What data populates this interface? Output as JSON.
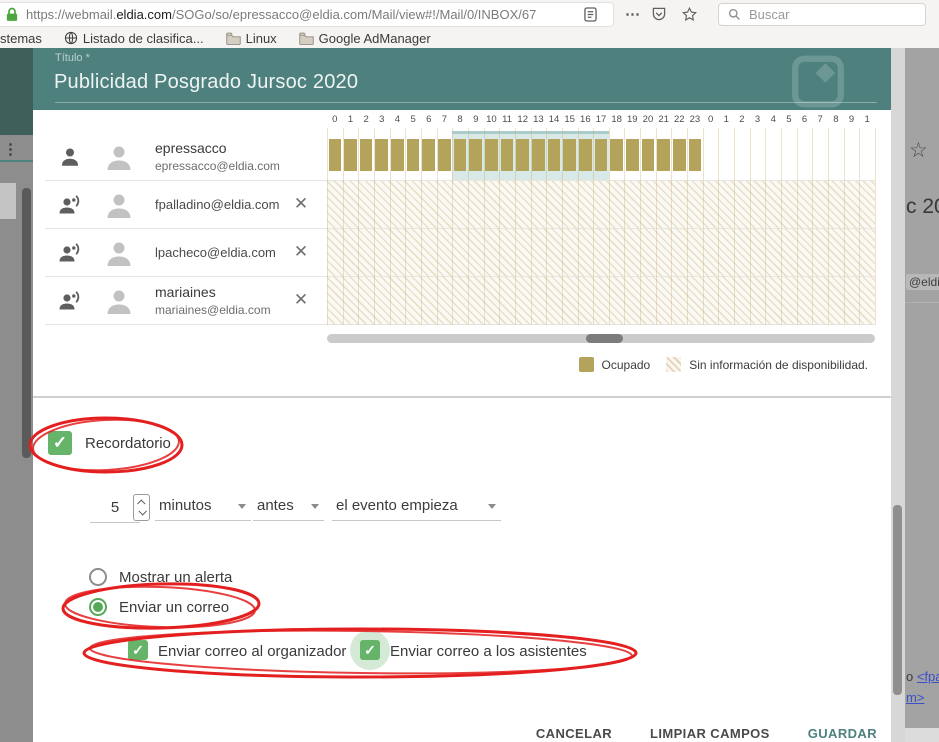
{
  "browser": {
    "url": {
      "prefix": "https://webmail.",
      "domain": "eldia.com",
      "path": "/SOGo/so/epressacco@eldia.com/Mail/view#!/Mail/0/INBOX/67"
    },
    "search_placeholder": "Buscar",
    "bookmarks": [
      {
        "label": "stemas",
        "icon": "none"
      },
      {
        "label": "Listado de clasifica...",
        "icon": "globe"
      },
      {
        "label": "Linux",
        "icon": "folder"
      },
      {
        "label": "Google AdManager",
        "icon": "folder"
      }
    ]
  },
  "dialog": {
    "header": {
      "field_label": "Título *",
      "title": "Publicidad Posgrado Jursoc 2020"
    },
    "scheduler": {
      "hour_labels": [
        "0",
        "1",
        "2",
        "3",
        "4",
        "5",
        "6",
        "7",
        "8",
        "9",
        "10",
        "11",
        "12",
        "13",
        "14",
        "15",
        "16",
        "17",
        "18",
        "19",
        "20",
        "21",
        "22",
        "23",
        "0",
        "1",
        "2",
        "3",
        "4",
        "5",
        "6",
        "7",
        "8",
        "9",
        "1"
      ],
      "highlight_start_hour": 8,
      "highlight_end_hour": 18,
      "attendees": [
        {
          "name": "epressacco",
          "email": "epressacco@eldia.com",
          "role": "organizer",
          "removable": false,
          "availability": "busy",
          "busy_range_hours": [
            0,
            24
          ]
        },
        {
          "name": "",
          "email": "fpalladino@eldia.com",
          "role": "attendee",
          "removable": true,
          "availability": "unknown"
        },
        {
          "name": "",
          "email": "lpacheco@eldia.com",
          "role": "attendee",
          "removable": true,
          "availability": "unknown"
        },
        {
          "name": "mariaines",
          "email": "mariaines@eldia.com",
          "role": "attendee",
          "removable": true,
          "availability": "unknown"
        }
      ],
      "legend": [
        {
          "type": "busy",
          "label": "Ocupado"
        },
        {
          "type": "no-info",
          "label": "Sin información de disponibilidad."
        }
      ]
    },
    "reminder": {
      "checkbox_label": "Recordatorio",
      "checked": true,
      "value": "5",
      "unit": "minutos",
      "timing": "antes",
      "reference": "el evento empieza",
      "radios": [
        {
          "label": "Mostrar un alerta",
          "selected": false
        },
        {
          "label": "Enviar un correo",
          "selected": true
        }
      ],
      "checkboxes": [
        {
          "label": "Enviar correo al organizador",
          "checked": true
        },
        {
          "label": "Enviar correo a los asistentes",
          "checked": true
        }
      ]
    },
    "actions": {
      "cancel": "CANCELAR",
      "clear": "LIMPIAR CAMPOS",
      "save": "GUARDAR"
    }
  },
  "background_page": {
    "partial_title": "c 20",
    "partial_email": "@eldia",
    "partial_text_before_link": "o ",
    "partial_link1": "<fpa",
    "partial_link2": "m>"
  },
  "icons": {
    "close": "✕",
    "checkmark": "✓",
    "overflow_menu": "⋯",
    "kebab_menu": "⋮",
    "star_outline": "☆"
  },
  "colors": {
    "accent_teal": "#4e817e",
    "busy_olive": "#b3a35b",
    "highlight_teal": "#8cbbb7",
    "annotation_red": "#e41f1f",
    "checkbox_green": "#65b469",
    "radio_green": "#56a95b"
  }
}
